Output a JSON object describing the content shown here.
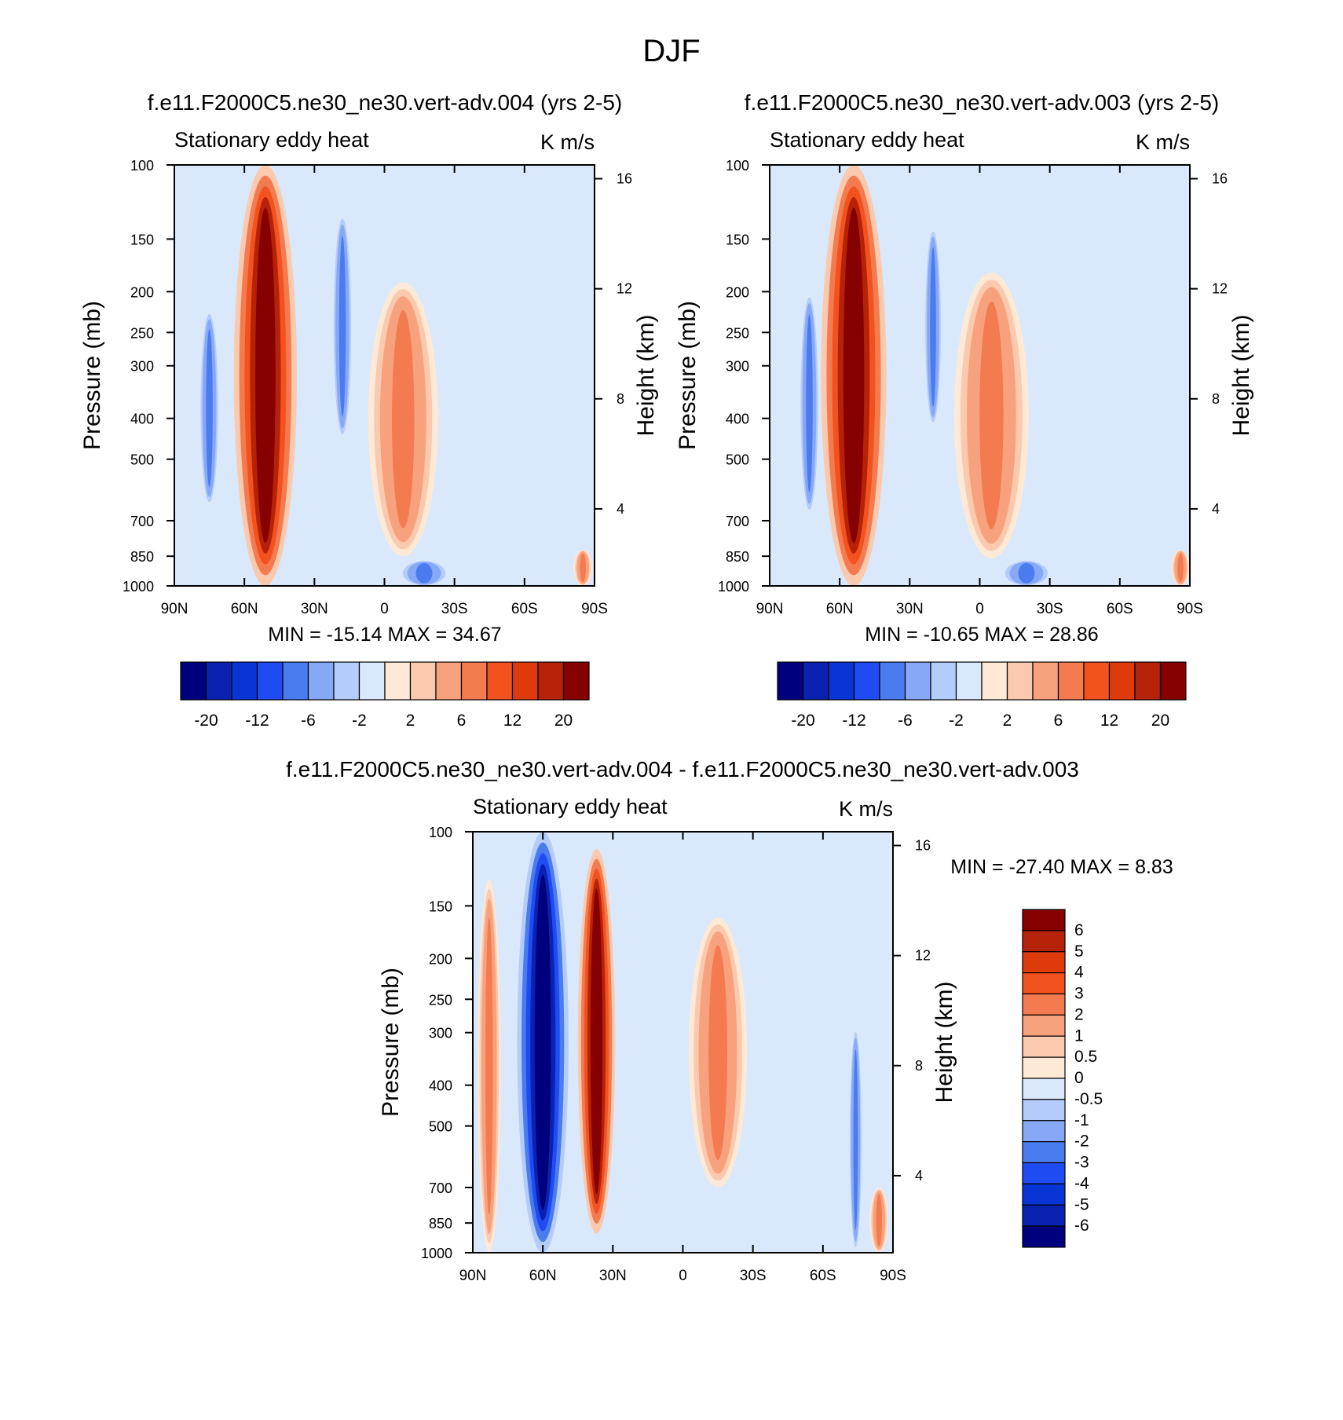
{
  "figure_title": "DJF",
  "palette": {
    "diverging": [
      "#00007f",
      "#0a22b0",
      "#0a35d6",
      "#1e4cf2",
      "#4a7cf0",
      "#86a8f6",
      "#b3ccfa",
      "#d9e8fb",
      "#fde9d6",
      "#fbc9ad",
      "#f8a17d",
      "#f47a4f",
      "#f2521d",
      "#dd3b0c",
      "#b62208",
      "#870000"
    ],
    "background_field": "#d9e8fb"
  },
  "chart_data": [
    {
      "type": "contour",
      "title": "f.e11.F2000C5.ne30_ne30.vert-adv.004 (yrs 2-5)",
      "left_string": "Stationary eddy heat",
      "right_string": "K m/s",
      "ylabel": "Pressure (mb)",
      "ylabel_right": "Height (km)",
      "x_ticklabels": [
        "90N",
        "60N",
        "30N",
        "0",
        "30S",
        "60S",
        "90S"
      ],
      "xlim": [
        90,
        -90
      ],
      "y_ticks": [
        100,
        150,
        200,
        250,
        300,
        400,
        500,
        700,
        850,
        1000
      ],
      "ylim": [
        1000,
        100
      ],
      "height_ticks": [
        16,
        12,
        8,
        4
      ],
      "stats": "MIN = -15.14  MAX =  34.67",
      "min": -15.14,
      "max": 34.67,
      "colorbar": {
        "orientation": "horizontal",
        "labels": [
          "-20",
          "-12",
          "-6",
          "-2",
          "2",
          "6",
          "12",
          "20"
        ]
      },
      "features": [
        {
          "name": "main-warm-band",
          "lat_center": 51,
          "lat_width": 27,
          "pmin": 100,
          "pmax": 1000,
          "sign": "positive",
          "peak": 34.67
        },
        {
          "name": "polar-cool-column",
          "lat_center": 75,
          "lat_width": 9,
          "pmin": 220,
          "pmax": 650,
          "sign": "negative"
        },
        {
          "name": "upper-cool-patch",
          "lat_center": 18,
          "lat_width": 9,
          "pmin": 130,
          "pmax": 450,
          "sign": "negative"
        },
        {
          "name": "tropical-warm-patch",
          "lat_center": -8,
          "lat_width": 30,
          "pmin": 190,
          "pmax": 850,
          "sign": "positive"
        },
        {
          "name": "southern-cool-patch",
          "lat_center": -17,
          "lat_width": 22,
          "pmin": 870,
          "pmax": 1000,
          "sign": "negative"
        },
        {
          "name": "antarctic-warm-spot",
          "lat_center": -85,
          "lat_width": 8,
          "pmin": 820,
          "pmax": 1000,
          "sign": "positive"
        }
      ]
    },
    {
      "type": "contour",
      "title": "f.e11.F2000C5.ne30_ne30.vert-adv.003 (yrs 2-5)",
      "left_string": "Stationary eddy heat",
      "right_string": "K m/s",
      "ylabel": "Pressure (mb)",
      "ylabel_right": "Height (km)",
      "x_ticklabels": [
        "90N",
        "60N",
        "30N",
        "0",
        "30S",
        "60S",
        "90S"
      ],
      "xlim": [
        90,
        -90
      ],
      "y_ticks": [
        100,
        150,
        200,
        250,
        300,
        400,
        500,
        700,
        850,
        1000
      ],
      "ylim": [
        1000,
        100
      ],
      "height_ticks": [
        16,
        12,
        8,
        4
      ],
      "stats": "MIN = -10.65  MAX =  28.86",
      "min": -10.65,
      "max": 28.86,
      "colorbar": {
        "orientation": "horizontal",
        "labels": [
          "-20",
          "-12",
          "-6",
          "-2",
          "2",
          "6",
          "12",
          "20"
        ]
      },
      "features": [
        {
          "name": "main-warm-band",
          "lat_center": 54,
          "lat_width": 28,
          "pmin": 100,
          "pmax": 1000,
          "sign": "positive",
          "peak": 28.86
        },
        {
          "name": "polar-cool-column",
          "lat_center": 73,
          "lat_width": 9,
          "pmin": 200,
          "pmax": 680,
          "sign": "negative"
        },
        {
          "name": "upper-cool-patch",
          "lat_center": 20,
          "lat_width": 8,
          "pmin": 140,
          "pmax": 420,
          "sign": "negative"
        },
        {
          "name": "tropical-warm-patch",
          "lat_center": -5,
          "lat_width": 32,
          "pmin": 180,
          "pmax": 860,
          "sign": "positive"
        },
        {
          "name": "southern-cool-patch",
          "lat_center": -20,
          "lat_width": 22,
          "pmin": 870,
          "pmax": 1000,
          "sign": "negative"
        },
        {
          "name": "antarctic-warm-spot",
          "lat_center": -86,
          "lat_width": 8,
          "pmin": 820,
          "pmax": 1000,
          "sign": "positive"
        }
      ]
    },
    {
      "type": "contour",
      "title": "f.e11.F2000C5.ne30_ne30.vert-adv.004 - f.e11.F2000C5.ne30_ne30.vert-adv.003",
      "left_string": "Stationary eddy heat",
      "right_string": "K m/s",
      "ylabel": "Pressure (mb)",
      "ylabel_right": "Height (km)",
      "x_ticklabels": [
        "90N",
        "60N",
        "30N",
        "0",
        "30S",
        "60S",
        "90S"
      ],
      "xlim": [
        90,
        -90
      ],
      "y_ticks": [
        100,
        150,
        200,
        250,
        300,
        400,
        500,
        700,
        850,
        1000
      ],
      "ylim": [
        1000,
        100
      ],
      "height_ticks": [
        16,
        12,
        8,
        4
      ],
      "stats": "MIN = -27.40  MAX =   8.83",
      "min": -27.4,
      "max": 8.83,
      "colorbar": {
        "orientation": "vertical",
        "labels": [
          "6",
          "5",
          "4",
          "3",
          "2",
          "1",
          "0.5",
          "0",
          "-0.5",
          "-1",
          "-2",
          "-3",
          "-4",
          "-5",
          "-6"
        ]
      },
      "features": [
        {
          "name": "polar-warm-column",
          "lat_center": 83,
          "lat_width": 10,
          "pmin": 130,
          "pmax": 1000,
          "sign": "positive"
        },
        {
          "name": "main-cool-band",
          "lat_center": 60,
          "lat_width": 22,
          "pmin": 100,
          "pmax": 1000,
          "sign": "negative",
          "peak": -27.4
        },
        {
          "name": "midlat-warm-band",
          "lat_center": 37,
          "lat_width": 16,
          "pmin": 110,
          "pmax": 900,
          "sign": "positive",
          "peak": 8.83
        },
        {
          "name": "tropical-warm-patch",
          "lat_center": -15,
          "lat_width": 25,
          "pmin": 160,
          "pmax": 700,
          "sign": "positive"
        },
        {
          "name": "southern-cool-column",
          "lat_center": -74,
          "lat_width": 6,
          "pmin": 290,
          "pmax": 1000,
          "sign": "negative"
        },
        {
          "name": "antarctic-warm-spot",
          "lat_center": -84,
          "lat_width": 8,
          "pmin": 700,
          "pmax": 1000,
          "sign": "positive"
        }
      ]
    }
  ]
}
